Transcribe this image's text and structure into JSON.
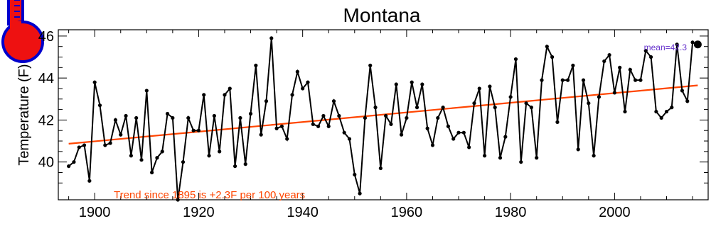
{
  "chart_data": {
    "type": "line",
    "title": "Montana",
    "xlabel": "",
    "ylabel": "Temperature (F)",
    "xlim": [
      1893,
      2018
    ],
    "ylim": [
      38.2,
      46.3
    ],
    "x_ticks": [
      1900,
      1920,
      1940,
      1960,
      1980,
      2000
    ],
    "y_ticks": [
      40,
      42,
      44,
      46
    ],
    "grid": false,
    "series": [
      {
        "x": [
          1895,
          1896,
          1897,
          1898,
          1899,
          1900,
          1901,
          1902,
          1903,
          1904,
          1905,
          1906,
          1907,
          1908,
          1909,
          1910,
          1911,
          1912,
          1913,
          1914,
          1915,
          1916,
          1917,
          1918,
          1919,
          1920,
          1921,
          1922,
          1923,
          1924,
          1925,
          1926,
          1927,
          1928,
          1929,
          1930,
          1931,
          1932,
          1933,
          1934,
          1935,
          1936,
          1937,
          1938,
          1939,
          1940,
          1941,
          1942,
          1943,
          1944,
          1945,
          1946,
          1947,
          1948,
          1949,
          1950,
          1951,
          1952,
          1953,
          1954,
          1955,
          1956,
          1957,
          1958,
          1959,
          1960,
          1961,
          1962,
          1963,
          1964,
          1965,
          1966,
          1967,
          1968,
          1969,
          1970,
          1971,
          1972,
          1973,
          1974,
          1975,
          1976,
          1977,
          1978,
          1979,
          1980,
          1981,
          1982,
          1983,
          1984,
          1985,
          1986,
          1987,
          1988,
          1989,
          1990,
          1991,
          1992,
          1993,
          1994,
          1995,
          1996,
          1997,
          1998,
          1999,
          2000,
          2001,
          2002,
          2003,
          2004,
          2005,
          2006,
          2007,
          2008,
          2009,
          2010,
          2011,
          2012,
          2013,
          2014,
          2015
        ],
        "values": [
          39.8,
          40.0,
          40.7,
          40.8,
          39.1,
          43.8,
          42.7,
          40.8,
          40.9,
          42.0,
          41.3,
          42.2,
          40.3,
          42.1,
          40.1,
          43.4,
          39.5,
          40.2,
          40.5,
          42.3,
          42.1,
          38.2,
          40.0,
          42.1,
          41.5,
          41.5,
          43.2,
          40.3,
          42.2,
          40.5,
          43.2,
          43.5,
          39.8,
          42.1,
          39.9,
          42.3,
          44.6,
          41.3,
          42.9,
          45.9,
          41.6,
          41.7,
          41.1,
          43.2,
          44.3,
          43.5,
          43.8,
          41.8,
          41.7,
          42.2,
          41.7,
          42.9,
          42.2,
          41.4,
          41.1,
          39.4,
          38.5,
          42.1,
          44.6,
          42.6,
          39.7,
          42.2,
          41.8,
          43.7,
          41.3,
          42.1,
          43.8,
          42.6,
          43.7,
          41.6,
          40.8,
          42.1,
          42.6,
          41.7,
          41.1,
          41.4,
          41.4,
          40.7,
          42.8,
          43.5,
          40.3,
          43.6,
          42.6,
          40.2,
          41.2,
          43.1,
          44.9,
          40.0,
          42.8,
          42.6,
          40.2,
          43.9,
          45.5,
          45.0,
          41.9,
          43.9,
          43.9,
          44.6,
          40.6,
          43.9,
          42.8,
          40.3,
          43.1,
          44.8,
          45.1,
          43.3,
          44.5,
          42.4,
          44.4,
          43.9,
          43.9,
          45.3,
          45.0,
          42.4,
          42.1,
          42.4,
          42.6,
          45.6,
          43.4,
          42.9,
          45.7
        ]
      }
    ],
    "trend": {
      "x": [
        1895,
        2016
      ],
      "y": [
        40.87,
        43.65
      ],
      "color": "#ff4500"
    },
    "last_point": {
      "x": 2016,
      "y": 45.6
    },
    "annotations": {
      "trend_text": "Trend since 1895 is +2.3F per 100 years",
      "mean_text": "mean=42.3"
    },
    "colors": {
      "line": "#000000",
      "trend": "#ff4500",
      "mean": "#6633cc",
      "thermometer": "#ee1111",
      "thermometer_outline": "#0000cc"
    }
  },
  "icons": {
    "thermometer": "thermometer-icon"
  }
}
